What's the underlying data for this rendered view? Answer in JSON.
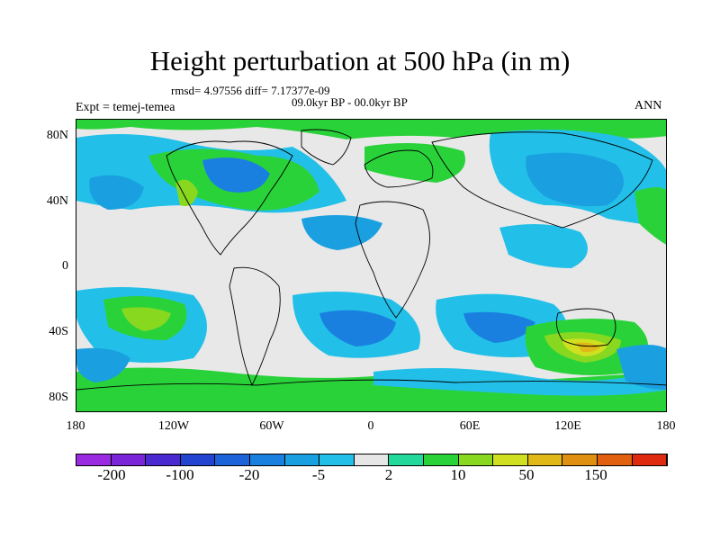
{
  "title": "Height perturbation at 500 hPa (in m)",
  "stats": "rmsd= 4.97556 diff= 7.17377e-09",
  "period": "09.0kyr BP - 00.0kyr BP",
  "experiment": "Expt = temej-temea",
  "season": "ANN",
  "y_ticks": [
    "80N",
    "40N",
    "0",
    "40S",
    "80S"
  ],
  "x_ticks": [
    "180",
    "120W",
    "60W",
    "0",
    "60E",
    "120E",
    "180"
  ],
  "colorbar": {
    "colors": [
      "#9a2be0",
      "#7a26d8",
      "#4a2ad0",
      "#2244d0",
      "#1c62d8",
      "#1a80e0",
      "#1aa0e0",
      "#22c0e8",
      "#e6e6e6",
      "#22d89a",
      "#2ad23a",
      "#88d820",
      "#d0e020",
      "#e0b818",
      "#e09010",
      "#e06010",
      "#e02a10"
    ],
    "labels": [
      "-200",
      "-100",
      "-20",
      "-5",
      "2",
      "10",
      "50",
      "150"
    ]
  },
  "map_colors": {
    "background": "#e8e8e8",
    "cyan": "#22c0e8",
    "light_blue": "#1aa0e0",
    "blue": "#1a80e0",
    "deep_blue": "#1c62d8",
    "teal": "#22d89a",
    "green": "#2ad23a",
    "lime": "#88d820",
    "yellow": "#d0e020",
    "orange": "#e0b818"
  }
}
